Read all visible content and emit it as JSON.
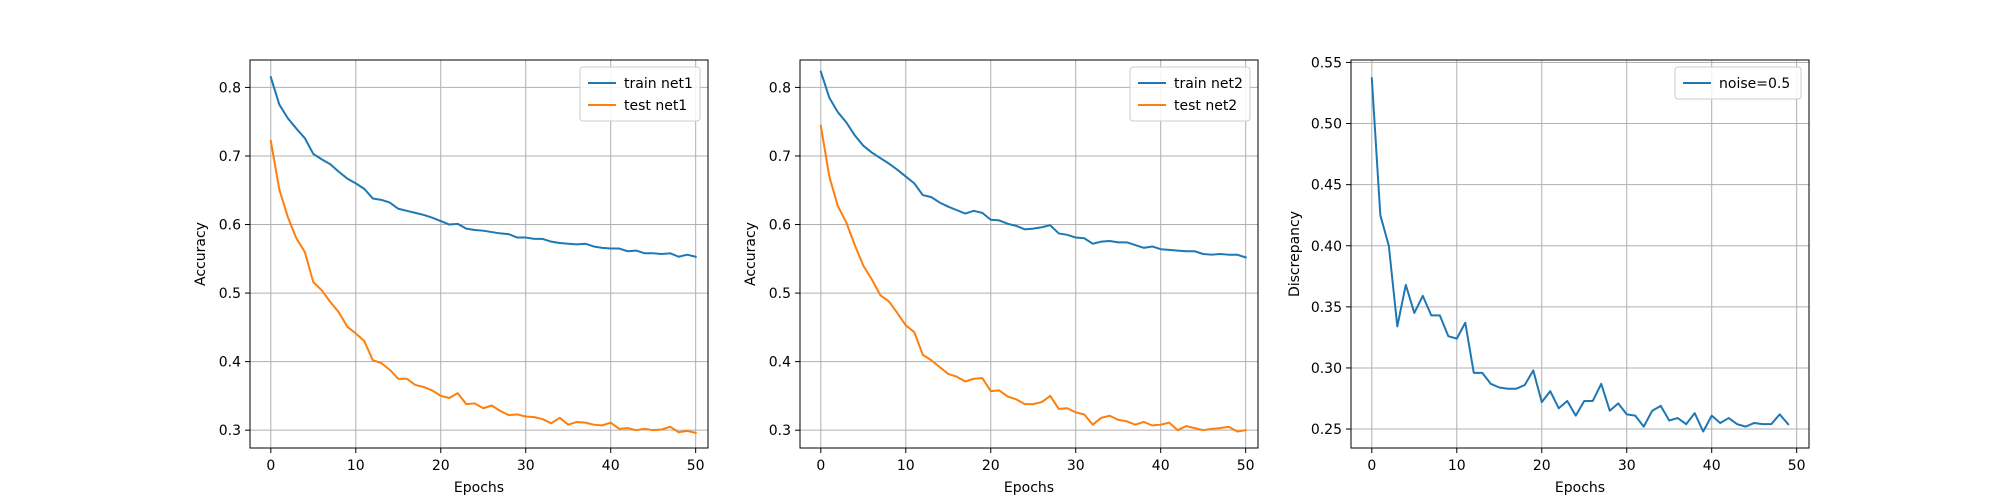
{
  "chart_data": [
    {
      "type": "line",
      "xlabel": "Epochs",
      "ylabel": "Accuracy",
      "xlim": [
        -2.45,
        51.45
      ],
      "ylim": [
        0.274,
        0.84
      ],
      "xticks": [
        0,
        10,
        20,
        30,
        40,
        50
      ],
      "yticks": [
        0.3,
        0.4,
        0.5,
        0.6,
        0.7,
        0.8
      ],
      "grid": true,
      "legend_position": "top-right",
      "series": [
        {
          "name": "train net1",
          "color": "#1f77b4",
          "values": [
            0.815,
            0.775,
            0.755,
            0.74,
            0.726,
            0.703,
            0.695,
            0.688,
            0.677,
            0.667,
            0.66,
            0.652,
            0.638,
            0.636,
            0.632,
            0.623,
            0.62,
            0.617,
            0.614,
            0.61,
            0.605,
            0.6,
            0.601,
            0.594,
            0.592,
            0.591,
            0.589,
            0.587,
            0.586,
            0.581,
            0.581,
            0.579,
            0.579,
            0.575,
            0.573,
            0.572,
            0.571,
            0.572,
            0.568,
            0.566,
            0.565,
            0.565,
            0.561,
            0.562,
            0.558,
            0.558,
            0.557,
            0.558,
            0.553,
            0.556,
            0.553
          ]
        },
        {
          "name": "test net1",
          "color": "#ff7f0e",
          "values": [
            0.722,
            0.651,
            0.611,
            0.58,
            0.56,
            0.516,
            0.504,
            0.487,
            0.472,
            0.451,
            0.441,
            0.43,
            0.402,
            0.398,
            0.388,
            0.375,
            0.375,
            0.366,
            0.363,
            0.358,
            0.35,
            0.347,
            0.354,
            0.338,
            0.339,
            0.332,
            0.336,
            0.328,
            0.322,
            0.323,
            0.32,
            0.319,
            0.316,
            0.31,
            0.318,
            0.308,
            0.312,
            0.311,
            0.308,
            0.307,
            0.311,
            0.302,
            0.303,
            0.3,
            0.302,
            0.3,
            0.301,
            0.305,
            0.297,
            0.299,
            0.296
          ]
        }
      ]
    },
    {
      "type": "line",
      "xlabel": "Epochs",
      "ylabel": "Accuracy",
      "xlim": [
        -2.45,
        51.45
      ],
      "ylim": [
        0.274,
        0.84
      ],
      "xticks": [
        0,
        10,
        20,
        30,
        40,
        50
      ],
      "yticks": [
        0.3,
        0.4,
        0.5,
        0.6,
        0.7,
        0.8
      ],
      "grid": true,
      "legend_position": "top-right",
      "series": [
        {
          "name": "train net2",
          "color": "#1f77b4",
          "values": [
            0.823,
            0.785,
            0.764,
            0.749,
            0.73,
            0.715,
            0.705,
            0.697,
            0.689,
            0.68,
            0.67,
            0.66,
            0.643,
            0.64,
            0.632,
            0.626,
            0.621,
            0.616,
            0.62,
            0.617,
            0.607,
            0.606,
            0.601,
            0.598,
            0.593,
            0.594,
            0.596,
            0.599,
            0.587,
            0.585,
            0.581,
            0.58,
            0.572,
            0.575,
            0.576,
            0.574,
            0.574,
            0.57,
            0.566,
            0.568,
            0.564,
            0.563,
            0.562,
            0.561,
            0.561,
            0.557,
            0.556,
            0.557,
            0.556,
            0.556,
            0.552
          ]
        },
        {
          "name": "test net2",
          "color": "#ff7f0e",
          "values": [
            0.744,
            0.67,
            0.627,
            0.603,
            0.57,
            0.54,
            0.52,
            0.497,
            0.488,
            0.471,
            0.453,
            0.443,
            0.41,
            0.402,
            0.392,
            0.382,
            0.378,
            0.371,
            0.375,
            0.376,
            0.357,
            0.358,
            0.349,
            0.345,
            0.338,
            0.338,
            0.341,
            0.35,
            0.331,
            0.332,
            0.326,
            0.323,
            0.308,
            0.318,
            0.321,
            0.315,
            0.313,
            0.308,
            0.312,
            0.307,
            0.308,
            0.311,
            0.3,
            0.306,
            0.303,
            0.3,
            0.302,
            0.303,
            0.305,
            0.298,
            0.3
          ]
        }
      ]
    },
    {
      "type": "line",
      "xlabel": "Epochs",
      "ylabel": "Discrepancy",
      "xlim": [
        -2.45,
        51.45
      ],
      "ylim": [
        0.2345,
        0.552
      ],
      "xticks": [
        0,
        10,
        20,
        30,
        40,
        50
      ],
      "yticks": [
        0.25,
        0.3,
        0.35,
        0.4,
        0.45,
        0.5,
        0.55
      ],
      "grid": true,
      "legend_position": "top-right",
      "series": [
        {
          "name": "noise=0.5",
          "color": "#1f77b4",
          "values": [
            0.537,
            0.425,
            0.4,
            0.334,
            0.368,
            0.345,
            0.359,
            0.343,
            0.343,
            0.326,
            0.324,
            0.337,
            0.296,
            0.296,
            0.287,
            0.284,
            0.283,
            0.283,
            0.286,
            0.298,
            0.272,
            0.281,
            0.267,
            0.273,
            0.261,
            0.273,
            0.273,
            0.287,
            0.265,
            0.271,
            0.262,
            0.261,
            0.252,
            0.265,
            0.269,
            0.257,
            0.259,
            0.254,
            0.263,
            0.248,
            0.261,
            0.255,
            0.259,
            0.254,
            0.252,
            0.255,
            0.254,
            0.254,
            0.262,
            0.254
          ]
        }
      ]
    }
  ]
}
